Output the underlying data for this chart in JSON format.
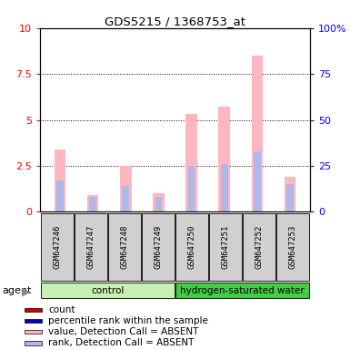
{
  "title": "GDS5215 / 1368753_at",
  "samples": [
    "GSM647246",
    "GSM647247",
    "GSM647248",
    "GSM647249",
    "GSM647250",
    "GSM647251",
    "GSM647252",
    "GSM647253"
  ],
  "value_absent": [
    3.4,
    0.9,
    2.5,
    1.0,
    5.3,
    5.7,
    8.5,
    1.9
  ],
  "rank_absent": [
    1.7,
    0.8,
    1.4,
    0.8,
    2.5,
    2.6,
    3.3,
    1.5
  ],
  "ylim_left": [
    0,
    10
  ],
  "ylim_right": [
    0,
    100
  ],
  "yticks_left": [
    0,
    2.5,
    5,
    7.5,
    10
  ],
  "yticks_right": [
    0,
    25,
    50,
    75,
    100
  ],
  "bar_width": 0.35,
  "color_value_absent": "#ffb6c1",
  "color_rank_absent": "#b0b8e8",
  "color_count": "#cc0000",
  "color_percentile": "#0000bb",
  "ctrl_color": "#c8f0b0",
  "hw_color": "#44cc44",
  "sample_bg": "#d0d0d0",
  "agent_label": "agent",
  "legend_items": [
    [
      "#cc0000",
      "count"
    ],
    [
      "#0000bb",
      "percentile rank within the sample"
    ],
    [
      "#ffb6c1",
      "value, Detection Call = ABSENT"
    ],
    [
      "#b0b8e8",
      "rank, Detection Call = ABSENT"
    ]
  ]
}
